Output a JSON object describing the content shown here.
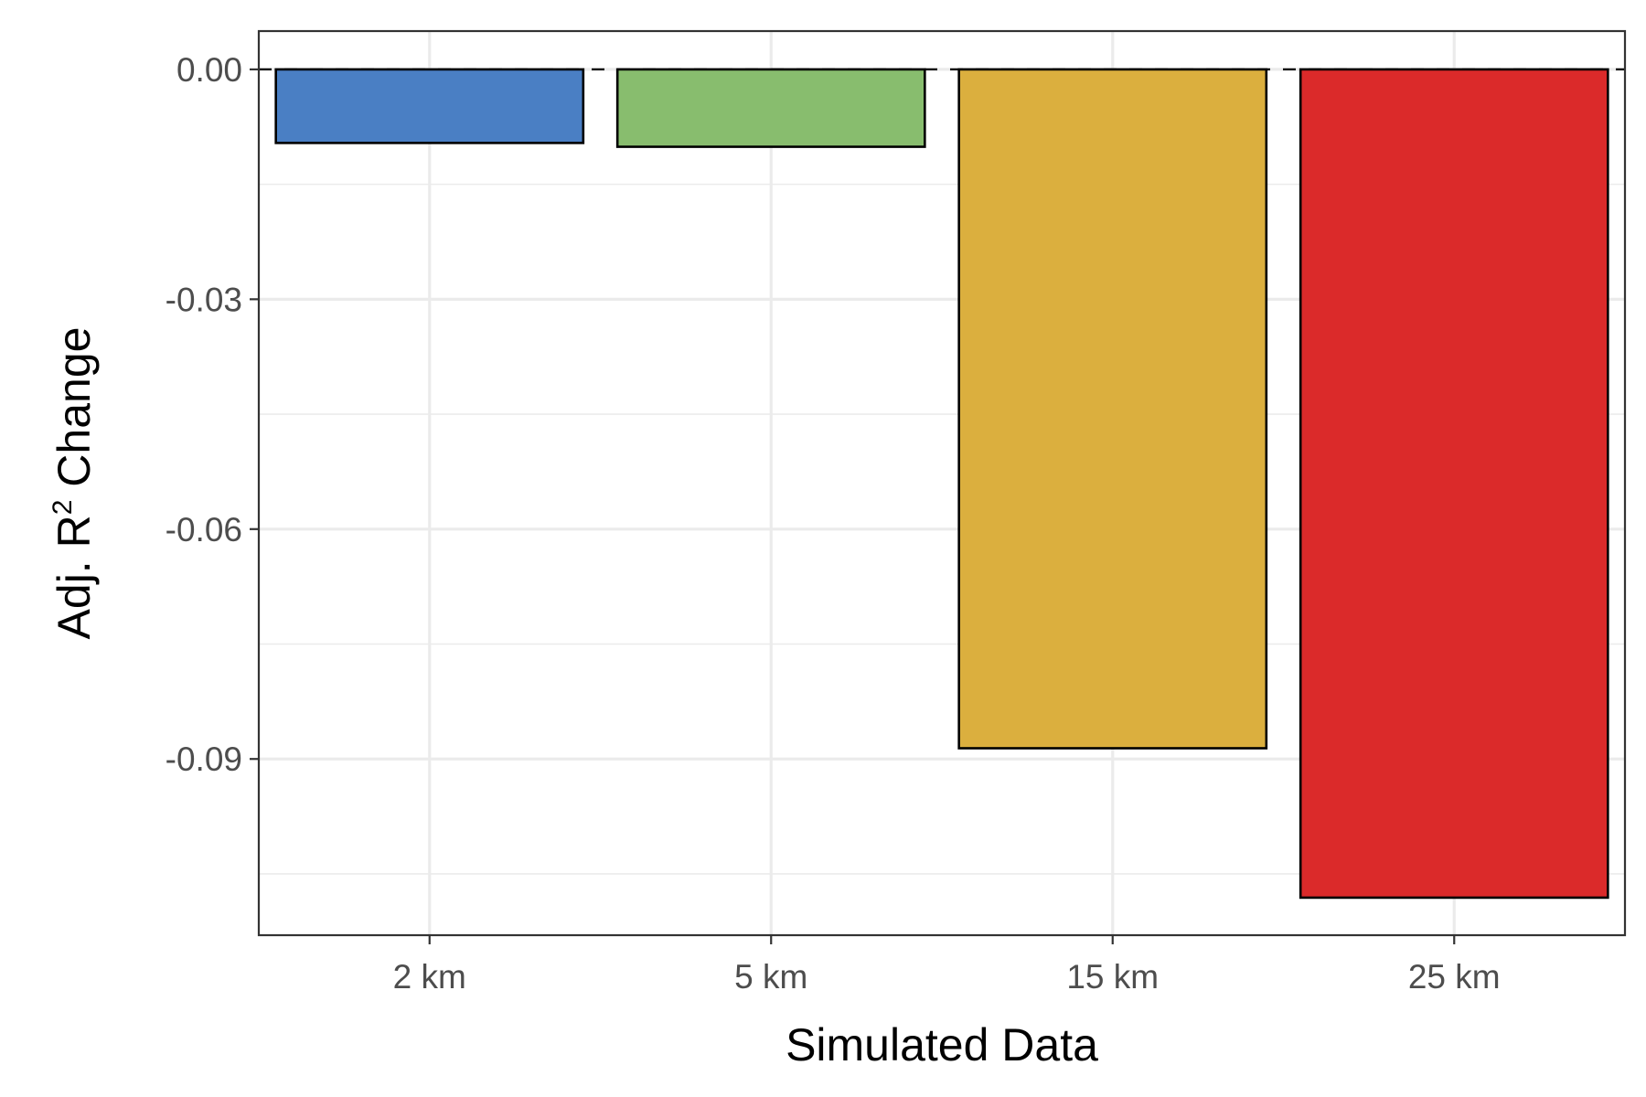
{
  "chart_data": {
    "type": "bar",
    "categories": [
      "2 km",
      "5 km",
      "15 km",
      "25 km"
    ],
    "values": [
      -0.0096,
      -0.0101,
      -0.0886,
      -0.1081
    ],
    "colors": [
      "#4a7fc4",
      "#88bd6e",
      "#dbaf3e",
      "#db2a2a"
    ],
    "title": "",
    "xlabel": "Simulated Data",
    "ylabel_prefix": "Adj. R",
    "ylabel_sup": "2",
    "ylabel_suffix": " Change",
    "ylim": [
      -0.113,
      0.005
    ],
    "yticks": [
      0.0,
      -0.03,
      -0.06,
      -0.09
    ],
    "ytick_labels": [
      "0.00",
      "-0.03",
      "-0.06",
      "-0.09"
    ],
    "minor_yticks": [
      -0.015,
      -0.045,
      -0.075,
      -0.105
    ],
    "reference_line": 0,
    "grid": true,
    "legend": "none"
  }
}
